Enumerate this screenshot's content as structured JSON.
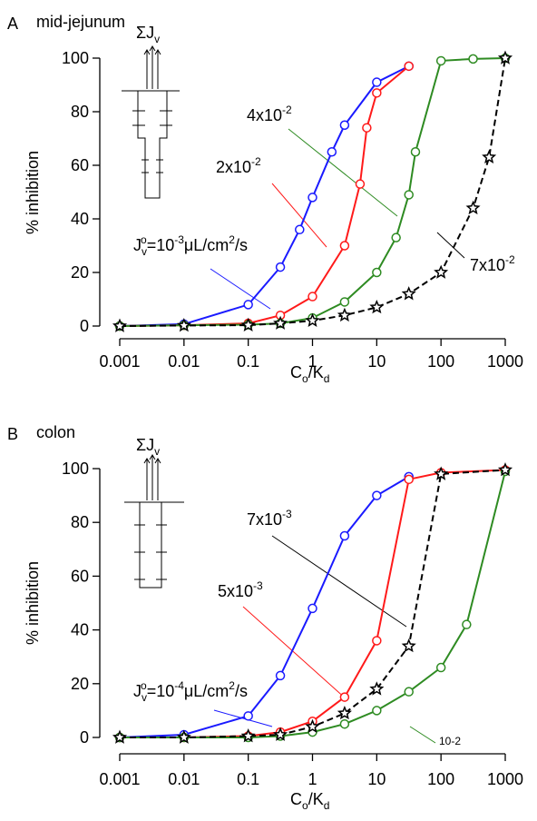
{
  "chart_data": [
    {
      "type": "line",
      "panel": "A",
      "title": "mid-jejunum",
      "ylabel": "% inhibition",
      "xlabel": [
        {
          "t": "C"
        },
        {
          "sub": "o"
        },
        {
          "t": "/K"
        },
        {
          "sub": "d"
        }
      ],
      "inset_label": [
        {
          "t": "ΣJ"
        },
        {
          "sub": "v"
        }
      ],
      "xscale": "log",
      "xlim": [
        0.001,
        1000
      ],
      "xticks": [
        0.001,
        0.01,
        0.1,
        1,
        10,
        100,
        1000
      ],
      "ylim": [
        0,
        100
      ],
      "yticks": [
        0,
        20,
        40,
        60,
        80,
        100
      ],
      "series": [
        {
          "color": "#1a1aff",
          "marker": "circle",
          "dashed": false,
          "x": [
            0.001,
            0.01,
            0.1,
            0.316,
            0.63,
            1,
            2,
            3.16,
            10,
            31.6
          ],
          "values": [
            0,
            0.7,
            8,
            22,
            36,
            48,
            65,
            75,
            91,
            97
          ]
        },
        {
          "color": "#ff1a1a",
          "marker": "circle",
          "dashed": false,
          "x": [
            0.001,
            0.01,
            0.1,
            0.316,
            1,
            3.16,
            5.5,
            7,
            10,
            31.6
          ],
          "values": [
            0,
            0.3,
            1,
            4,
            11,
            30,
            53,
            74,
            87,
            97
          ]
        },
        {
          "color": "#2e8b22",
          "marker": "circle",
          "dashed": false,
          "x": [
            0.001,
            0.01,
            0.1,
            0.316,
            1,
            3.16,
            10,
            20,
            31.6,
            40,
            100,
            316,
            1000
          ],
          "values": [
            0,
            0.3,
            0.5,
            1,
            3,
            9,
            20,
            33,
            49,
            65,
            99,
            99.7,
            100
          ]
        },
        {
          "color": "#000000",
          "marker": "star",
          "dashed": true,
          "x": [
            0.001,
            0.01,
            0.1,
            0.316,
            1,
            3.16,
            10,
            31.6,
            100,
            316,
            560,
            1000
          ],
          "values": [
            0,
            0.2,
            0.3,
            1,
            2,
            4,
            7,
            12,
            20,
            44,
            63,
            100
          ]
        }
      ],
      "annotations": [
        {
          "color": "#2e8b22",
          "parts": [
            {
              "t": "4x10"
            },
            {
              "sup": "-2"
            }
          ]
        },
        {
          "color": "#ff1a1a",
          "parts": [
            {
              "t": "2x10"
            },
            {
              "sup": "-2"
            }
          ]
        },
        {
          "color": "#1a1aff",
          "parts": [
            {
              "t": "J"
            },
            {
              "sub": "v"
            },
            {
              "sup": "o"
            },
            {
              "t": "=10"
            },
            {
              "sup": "-3"
            },
            {
              "t": "μL/cm"
            },
            {
              "sup": "2"
            },
            {
              "t": "/s"
            }
          ]
        },
        {
          "color": "#000000",
          "parts": [
            {
              "t": "7x10"
            },
            {
              "sup": "-2"
            }
          ]
        }
      ]
    },
    {
      "type": "line",
      "panel": "B",
      "title": "colon",
      "ylabel": "% inhibition",
      "xlabel": [
        {
          "t": "C"
        },
        {
          "sub": "o"
        },
        {
          "t": "/K"
        },
        {
          "sub": "d"
        }
      ],
      "inset_label": [
        {
          "t": "ΣJ"
        },
        {
          "sub": "v"
        }
      ],
      "xscale": "log",
      "xlim": [
        0.001,
        1000
      ],
      "xticks": [
        0.001,
        0.01,
        0.1,
        1,
        10,
        100,
        1000
      ],
      "ylim": [
        0,
        100
      ],
      "yticks": [
        0,
        20,
        40,
        60,
        80,
        100
      ],
      "series": [
        {
          "color": "#1a1aff",
          "marker": "circle",
          "dashed": false,
          "x": [
            0.001,
            0.01,
            0.1,
            0.316,
            1,
            3.16,
            10,
            31.6
          ],
          "values": [
            0,
            1,
            8,
            23,
            48,
            75,
            90,
            97
          ]
        },
        {
          "color": "#ff1a1a",
          "marker": "circle",
          "dashed": false,
          "x": [
            0.001,
            0.01,
            0.1,
            0.316,
            1,
            3.16,
            10,
            31.6,
            100,
            1000
          ],
          "values": [
            0,
            0,
            0.5,
            2,
            6,
            15,
            36,
            96,
            98.5,
            99.5
          ]
        },
        {
          "color": "#2e8b22",
          "marker": "circle",
          "dashed": false,
          "x": [
            0.001,
            0.01,
            0.1,
            0.316,
            1,
            3.16,
            10,
            31.6,
            100,
            250,
            1000
          ],
          "values": [
            0,
            0,
            0,
            0.5,
            2,
            5,
            10,
            17,
            26,
            42,
            99
          ]
        },
        {
          "color": "#000000",
          "marker": "star",
          "dashed": true,
          "x": [
            0.001,
            0.01,
            0.1,
            0.316,
            1,
            3.16,
            10,
            31.6,
            100,
            1000
          ],
          "values": [
            0,
            0,
            0.5,
            1,
            4,
            9,
            18,
            34,
            98,
            99.5
          ]
        }
      ],
      "annotations": [
        {
          "color": "#000000",
          "parts": [
            {
              "t": "7x10"
            },
            {
              "sup": "-3"
            }
          ]
        },
        {
          "color": "#ff1a1a",
          "parts": [
            {
              "t": "5x10"
            },
            {
              "sup": "-3"
            }
          ]
        },
        {
          "color": "#1a1aff",
          "parts": [
            {
              "t": "J"
            },
            {
              "sub": "v"
            },
            {
              "sup": "o"
            },
            {
              "t": "=10"
            },
            {
              "sup": "-4"
            },
            {
              "t": "μL/cm"
            },
            {
              "sup": "2"
            },
            {
              "t": "/s"
            }
          ]
        },
        {
          "color": "#2e8b22",
          "parts": [
            {
              "sup": "10"
            },
            {
              "sup": "-2"
            }
          ]
        }
      ]
    }
  ]
}
